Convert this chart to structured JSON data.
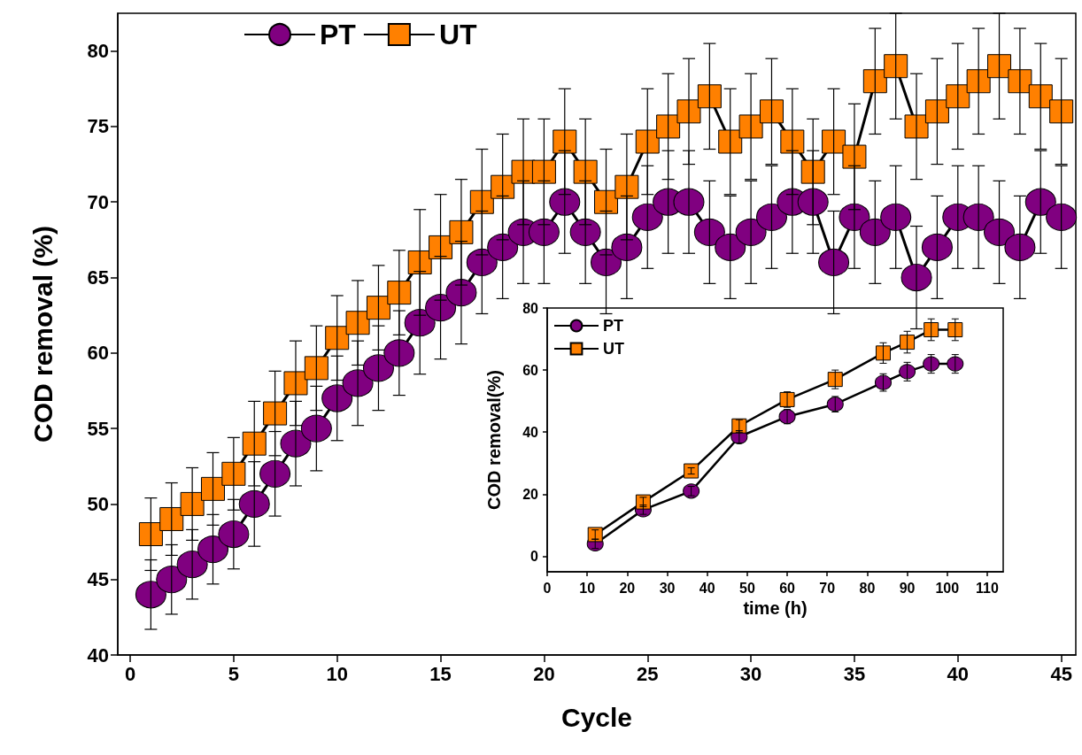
{
  "chart_data": [
    {
      "type": "line",
      "xlabel": "Cycle",
      "ylabel": "COD removal (%)",
      "x": [
        1,
        2,
        3,
        4,
        5,
        6,
        7,
        8,
        9,
        10,
        11,
        12,
        13,
        14,
        15,
        16,
        17,
        18,
        19,
        20,
        21,
        22,
        23,
        24,
        25,
        26,
        27,
        28,
        29,
        30,
        31,
        32,
        33,
        34,
        35,
        36,
        37,
        38,
        39,
        40,
        41,
        42,
        43,
        44,
        45
      ],
      "series": [
        {
          "name": "PT",
          "color": "#800080",
          "marker": "circle",
          "values": [
            44,
            45,
            46,
            47,
            48,
            50,
            52,
            54,
            55,
            57,
            58,
            59,
            60,
            62,
            63,
            64,
            66,
            67,
            68,
            68,
            70,
            68,
            66,
            67,
            69,
            70,
            70,
            68,
            67,
            68,
            69,
            70,
            70,
            66,
            69,
            68,
            69,
            65,
            67,
            69,
            69,
            68,
            67,
            70,
            69
          ],
          "errors": [
            2.3,
            2.3,
            2.3,
            2.3,
            2.3,
            2.8,
            2.8,
            2.8,
            2.8,
            2.8,
            2.8,
            2.8,
            2.8,
            3.4,
            3.4,
            3.4,
            3.4,
            3.4,
            3.4,
            3.4,
            3.4,
            3.4,
            3.4,
            3.4,
            3.4,
            3.4,
            3.4,
            3.4,
            3.4,
            3.4,
            3.4,
            3.4,
            3.4,
            3.4,
            3.4,
            3.4,
            3.4,
            3.4,
            3.4,
            3.4,
            3.4,
            3.4,
            3.4,
            3.4,
            3.4
          ]
        },
        {
          "name": "UT",
          "color": "#ff8000",
          "marker": "square",
          "values": [
            48,
            49,
            50,
            51,
            52,
            54,
            56,
            58,
            59,
            61,
            62,
            63,
            64,
            66,
            67,
            68,
            70,
            71,
            72,
            72,
            74,
            72,
            70,
            71,
            74,
            75,
            76,
            77,
            74,
            75,
            76,
            74,
            72,
            74,
            73,
            78,
            79,
            75,
            76,
            77,
            78,
            79,
            78,
            77,
            76
          ],
          "errors": [
            2.4,
            2.4,
            2.4,
            2.4,
            2.4,
            2.8,
            2.8,
            2.8,
            2.8,
            2.8,
            2.8,
            2.8,
            2.8,
            3.5,
            3.5,
            3.5,
            3.5,
            3.5,
            3.5,
            3.5,
            3.5,
            3.5,
            3.5,
            3.5,
            3.5,
            3.5,
            3.5,
            3.5,
            3.5,
            3.5,
            3.5,
            3.5,
            3.5,
            3.5,
            3.5,
            3.5,
            3.5,
            3.5,
            3.5,
            3.5,
            3.5,
            3.5,
            3.5,
            3.5,
            3.5
          ]
        }
      ],
      "xlim": [
        -0.6,
        45.7
      ],
      "xticks": [
        0,
        5,
        10,
        15,
        20,
        25,
        30,
        35,
        40,
        45
      ],
      "ylim": [
        40,
        82.5
      ],
      "yticks": [
        40,
        45,
        50,
        55,
        60,
        65,
        70,
        75,
        80
      ],
      "legend": "top left"
    },
    {
      "type": "line",
      "xlabel": "time (h)",
      "ylabel": "COD removal(%)",
      "x": [
        12,
        24,
        36,
        48,
        60,
        72,
        84,
        90,
        96,
        102
      ],
      "series": [
        {
          "name": "PT",
          "color": "#800080",
          "marker": "circle",
          "values": [
            4,
            15,
            21,
            38.5,
            45,
            49,
            56,
            59.5,
            62,
            62
          ],
          "errors": [
            1.5,
            1.5,
            1.5,
            2,
            2.3,
            2.5,
            2.8,
            3,
            3,
            3
          ]
        },
        {
          "name": "UT",
          "color": "#ff8000",
          "marker": "square",
          "values": [
            7,
            17.5,
            27.5,
            42,
            50.5,
            57,
            65.5,
            69,
            73,
            73
          ],
          "errors": [
            1.5,
            1.5,
            1,
            2,
            2.5,
            3,
            3.3,
            3.5,
            3.5,
            3.5
          ]
        }
      ],
      "xlim": [
        0,
        114
      ],
      "xticks": [
        0,
        10,
        20,
        30,
        40,
        50,
        60,
        70,
        80,
        90,
        100,
        110
      ],
      "ylim": [
        -5,
        80
      ],
      "yticks": [
        0,
        20,
        40,
        60,
        80
      ],
      "legend": "top left"
    }
  ]
}
